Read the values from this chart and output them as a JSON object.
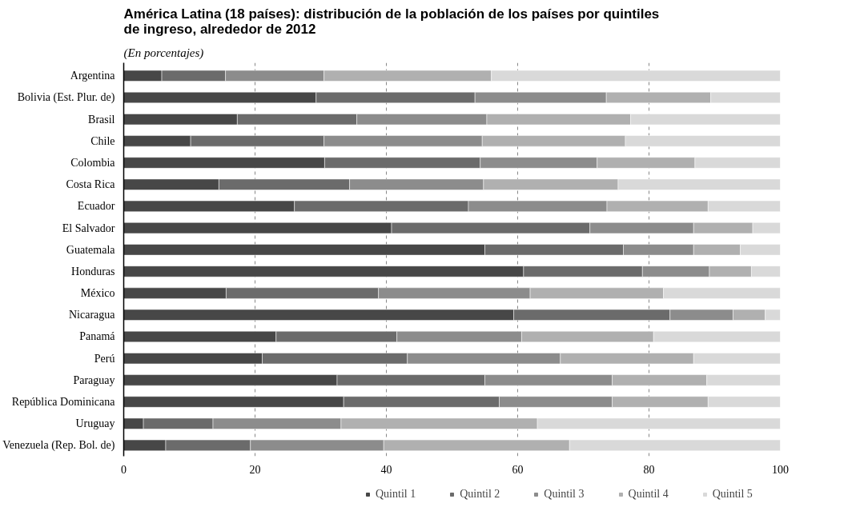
{
  "chart_data": {
    "type": "bar",
    "orientation": "horizontal",
    "stacked": true,
    "title": "América Latina (18 países): distribución de la población de los países por quintiles de ingreso, alrededor de 2012",
    "subtitle": "(En porcentajes)",
    "categories": [
      "Argentina",
      "Bolivia (Est. Plur. de)",
      "Brasil",
      "Chile",
      "Colombia",
      "Costa Rica",
      "Ecuador",
      "El Salvador",
      "Guatemala",
      "Honduras",
      "México",
      "Nicaragua",
      "Panamá",
      "Perú",
      "Paraguay",
      "República Dominicana",
      "Uruguay",
      "Venezuela (Rep. Bol. de)"
    ],
    "series": [
      {
        "name": "Quintil 1",
        "color": "#474747",
        "values": [
          5.8,
          29.3,
          17.3,
          10.2,
          30.6,
          14.5,
          26.0,
          40.8,
          55.0,
          60.9,
          15.6,
          59.4,
          23.2,
          21.1,
          32.5,
          33.5,
          3.0,
          6.4
        ]
      },
      {
        "name": "Quintil 2",
        "color": "#6b6b6b",
        "values": [
          9.7,
          24.2,
          18.2,
          20.3,
          23.7,
          19.9,
          26.5,
          30.2,
          21.1,
          18.1,
          23.2,
          23.8,
          18.4,
          22.1,
          22.5,
          23.7,
          10.6,
          12.9
        ]
      },
      {
        "name": "Quintil 3",
        "color": "#8c8c8c",
        "values": [
          15.0,
          20.0,
          19.8,
          24.1,
          17.8,
          20.4,
          21.1,
          15.8,
          10.7,
          10.2,
          23.1,
          9.6,
          19.0,
          23.3,
          19.4,
          17.2,
          19.5,
          20.3
        ]
      },
      {
        "name": "Quintil 4",
        "color": "#b0b0b0",
        "values": [
          25.5,
          15.9,
          21.9,
          21.8,
          14.9,
          20.5,
          15.4,
          9.0,
          7.1,
          6.4,
          20.3,
          4.9,
          20.1,
          20.3,
          14.4,
          14.6,
          29.9,
          28.3
        ]
      },
      {
        "name": "Quintil 5",
        "color": "#d9d9d9",
        "values": [
          44.0,
          10.6,
          22.8,
          23.6,
          13.0,
          24.7,
          11.0,
          4.2,
          6.1,
          4.4,
          17.8,
          2.3,
          19.3,
          13.2,
          11.2,
          11.0,
          37.0,
          32.1
        ]
      }
    ],
    "xlim": [
      0,
      100
    ],
    "xticks": [
      0,
      20,
      40,
      60,
      80,
      100
    ],
    "grid": "x",
    "legend": "bottom"
  }
}
